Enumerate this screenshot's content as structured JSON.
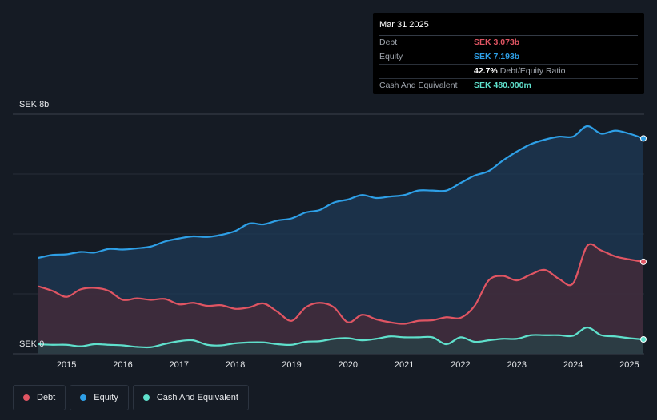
{
  "tooltip": {
    "date": "Mar 31 2025",
    "debt_label": "Debt",
    "debt_value": "SEK 3.073b",
    "equity_label": "Equity",
    "equity_value": "SEK 7.193b",
    "ratio_value": "42.7%",
    "ratio_label": "Debt/Equity Ratio",
    "cash_label": "Cash And Equivalent",
    "cash_value": "SEK 480.000m"
  },
  "legend": {
    "debt": "Debt",
    "equity": "Equity",
    "cash": "Cash And Equivalent"
  },
  "colors": {
    "debt": "#e05563",
    "equity": "#2e9fe6",
    "cash": "#5fe0cc",
    "background": "#151b24"
  },
  "chart_data": {
    "type": "area",
    "currency": "SEK",
    "y_top_label": "SEK 8b",
    "y_bottom_label": "SEK 0",
    "ylim": [
      0,
      8
    ],
    "xlim": [
      2014.5,
      2025.25
    ],
    "x_tick_labels": [
      "2015",
      "2016",
      "2017",
      "2018",
      "2019",
      "2020",
      "2021",
      "2022",
      "2023",
      "2024",
      "2025"
    ],
    "x_ticks": [
      2015,
      2016,
      2017,
      2018,
      2019,
      2020,
      2021,
      2022,
      2023,
      2024,
      2025
    ],
    "gridlines": [
      0,
      2,
      4,
      6,
      8
    ],
    "series": [
      {
        "name": "Equity",
        "unit": "SEK b",
        "points": [
          [
            2014.5,
            3.2
          ],
          [
            2014.75,
            3.3
          ],
          [
            2015.0,
            3.32
          ],
          [
            2015.25,
            3.4
          ],
          [
            2015.5,
            3.38
          ],
          [
            2015.75,
            3.5
          ],
          [
            2016.0,
            3.48
          ],
          [
            2016.25,
            3.52
          ],
          [
            2016.5,
            3.58
          ],
          [
            2016.75,
            3.75
          ],
          [
            2017.0,
            3.85
          ],
          [
            2017.25,
            3.92
          ],
          [
            2017.5,
            3.9
          ],
          [
            2017.75,
            3.97
          ],
          [
            2018.0,
            4.1
          ],
          [
            2018.25,
            4.35
          ],
          [
            2018.5,
            4.32
          ],
          [
            2018.75,
            4.45
          ],
          [
            2019.0,
            4.52
          ],
          [
            2019.25,
            4.72
          ],
          [
            2019.5,
            4.8
          ],
          [
            2019.75,
            5.05
          ],
          [
            2020.0,
            5.15
          ],
          [
            2020.25,
            5.3
          ],
          [
            2020.5,
            5.2
          ],
          [
            2020.75,
            5.25
          ],
          [
            2021.0,
            5.3
          ],
          [
            2021.25,
            5.45
          ],
          [
            2021.5,
            5.45
          ],
          [
            2021.75,
            5.45
          ],
          [
            2022.0,
            5.7
          ],
          [
            2022.25,
            5.95
          ],
          [
            2022.5,
            6.1
          ],
          [
            2022.75,
            6.45
          ],
          [
            2023.0,
            6.75
          ],
          [
            2023.25,
            7.0
          ],
          [
            2023.5,
            7.15
          ],
          [
            2023.75,
            7.25
          ],
          [
            2024.0,
            7.25
          ],
          [
            2024.25,
            7.6
          ],
          [
            2024.5,
            7.35
          ],
          [
            2024.75,
            7.45
          ],
          [
            2025.0,
            7.35
          ],
          [
            2025.25,
            7.19
          ]
        ]
      },
      {
        "name": "Debt",
        "unit": "SEK b",
        "points": [
          [
            2014.5,
            2.25
          ],
          [
            2014.75,
            2.1
          ],
          [
            2015.0,
            1.9
          ],
          [
            2015.25,
            2.15
          ],
          [
            2015.5,
            2.2
          ],
          [
            2015.75,
            2.1
          ],
          [
            2016.0,
            1.8
          ],
          [
            2016.25,
            1.85
          ],
          [
            2016.5,
            1.8
          ],
          [
            2016.75,
            1.83
          ],
          [
            2017.0,
            1.65
          ],
          [
            2017.25,
            1.7
          ],
          [
            2017.5,
            1.6
          ],
          [
            2017.75,
            1.62
          ],
          [
            2018.0,
            1.5
          ],
          [
            2018.25,
            1.55
          ],
          [
            2018.5,
            1.68
          ],
          [
            2018.75,
            1.4
          ],
          [
            2019.0,
            1.1
          ],
          [
            2019.25,
            1.55
          ],
          [
            2019.5,
            1.7
          ],
          [
            2019.75,
            1.55
          ],
          [
            2020.0,
            1.05
          ],
          [
            2020.25,
            1.3
          ],
          [
            2020.5,
            1.15
          ],
          [
            2020.75,
            1.05
          ],
          [
            2021.0,
            1.0
          ],
          [
            2021.25,
            1.1
          ],
          [
            2021.5,
            1.12
          ],
          [
            2021.75,
            1.22
          ],
          [
            2022.0,
            1.2
          ],
          [
            2022.25,
            1.6
          ],
          [
            2022.5,
            2.45
          ],
          [
            2022.75,
            2.6
          ],
          [
            2023.0,
            2.45
          ],
          [
            2023.25,
            2.65
          ],
          [
            2023.5,
            2.8
          ],
          [
            2023.75,
            2.5
          ],
          [
            2024.0,
            2.35
          ],
          [
            2024.25,
            3.6
          ],
          [
            2024.5,
            3.45
          ],
          [
            2024.75,
            3.25
          ],
          [
            2025.0,
            3.15
          ],
          [
            2025.25,
            3.07
          ]
        ]
      },
      {
        "name": "Cash And Equivalent",
        "unit": "SEK b",
        "points": [
          [
            2014.5,
            0.32
          ],
          [
            2014.75,
            0.3
          ],
          [
            2015.0,
            0.3
          ],
          [
            2015.25,
            0.25
          ],
          [
            2015.5,
            0.32
          ],
          [
            2015.75,
            0.3
          ],
          [
            2016.0,
            0.28
          ],
          [
            2016.25,
            0.23
          ],
          [
            2016.5,
            0.22
          ],
          [
            2016.75,
            0.33
          ],
          [
            2017.0,
            0.42
          ],
          [
            2017.25,
            0.45
          ],
          [
            2017.5,
            0.3
          ],
          [
            2017.75,
            0.28
          ],
          [
            2018.0,
            0.35
          ],
          [
            2018.25,
            0.38
          ],
          [
            2018.5,
            0.38
          ],
          [
            2018.75,
            0.32
          ],
          [
            2019.0,
            0.3
          ],
          [
            2019.25,
            0.4
          ],
          [
            2019.5,
            0.42
          ],
          [
            2019.75,
            0.5
          ],
          [
            2020.0,
            0.52
          ],
          [
            2020.25,
            0.45
          ],
          [
            2020.5,
            0.5
          ],
          [
            2020.75,
            0.58
          ],
          [
            2021.0,
            0.55
          ],
          [
            2021.25,
            0.55
          ],
          [
            2021.5,
            0.55
          ],
          [
            2021.75,
            0.32
          ],
          [
            2022.0,
            0.55
          ],
          [
            2022.25,
            0.4
          ],
          [
            2022.5,
            0.45
          ],
          [
            2022.75,
            0.5
          ],
          [
            2023.0,
            0.5
          ],
          [
            2023.25,
            0.62
          ],
          [
            2023.5,
            0.62
          ],
          [
            2023.75,
            0.62
          ],
          [
            2024.0,
            0.6
          ],
          [
            2024.25,
            0.88
          ],
          [
            2024.5,
            0.62
          ],
          [
            2024.75,
            0.58
          ],
          [
            2025.0,
            0.52
          ],
          [
            2025.25,
            0.48
          ]
        ]
      }
    ]
  }
}
